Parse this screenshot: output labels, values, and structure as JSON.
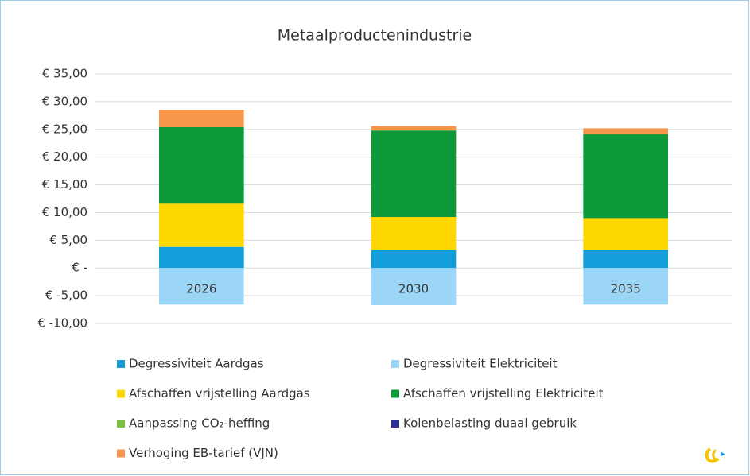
{
  "chart_data": {
    "type": "stacked-bar",
    "title": "Metaalproductenindustrie",
    "categories": [
      "2026",
      "2030",
      "2035"
    ],
    "series": [
      {
        "name": "Degressiviteit Aardgas",
        "color": "#129ddb",
        "values": [
          3.8,
          3.3,
          3.3
        ]
      },
      {
        "name": "Degressiviteit Elektriciteit",
        "color": "#9bd6f7",
        "values": [
          -6.6,
          -6.7,
          -6.6
        ]
      },
      {
        "name": "Afschaffen vrijstelling Aardgas",
        "color": "#ffd700",
        "values": [
          7.8,
          5.9,
          5.7
        ]
      },
      {
        "name": "Afschaffen vrijstelling Elektriciteit",
        "color": "#0e9a3a",
        "values": [
          13.8,
          15.6,
          15.2
        ]
      },
      {
        "name": "Aanpassing CO₂-heffing",
        "color": "#7cc242",
        "values": [
          0,
          0,
          0
        ]
      },
      {
        "name": "Kolenbelasting duaal gebruik",
        "color": "#2e3192",
        "values": [
          0,
          0,
          0
        ]
      },
      {
        "name": "Verhoging EB-tarief (VJN)",
        "color": "#f7964a",
        "values": [
          3.1,
          0.8,
          1.0
        ]
      }
    ],
    "ylim": [
      -10,
      35
    ],
    "yticks": [
      {
        "value": -10,
        "label": "€ -10,00"
      },
      {
        "value": -5,
        "label": "€ -5,00"
      },
      {
        "value": 0,
        "label": "€ -"
      },
      {
        "value": 5,
        "label": "€ 5,00"
      },
      {
        "value": 10,
        "label": "€ 10,00"
      },
      {
        "value": 15,
        "label": "€ 15,00"
      },
      {
        "value": 20,
        "label": "€ 20,00"
      },
      {
        "value": 25,
        "label": "€ 25,00"
      },
      {
        "value": 30,
        "label": "€ 30,00"
      },
      {
        "value": 35,
        "label": "€ 35,00"
      }
    ],
    "grid": true
  }
}
